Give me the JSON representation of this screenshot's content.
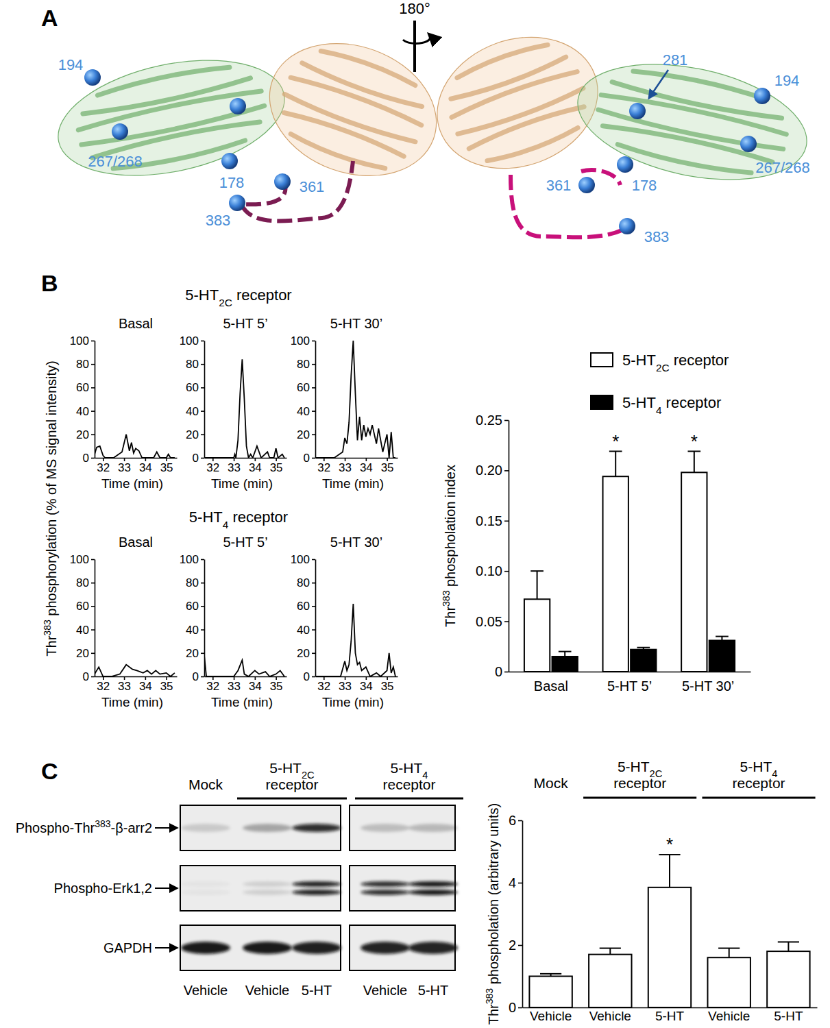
{
  "panel_labels": [
    "A",
    "B",
    "C"
  ],
  "structure": {
    "rotation": "180°",
    "left_view": [
      "194",
      "267/268",
      "178",
      "361",
      "383"
    ],
    "right_view": [
      "281",
      "194",
      "267/268",
      "361",
      "178",
      "383"
    ]
  },
  "chromatogram_panel": {
    "y_label": "Thr383 phosphorylation (% of MS signal intensity)",
    "row_titles": [
      "5-HT2C receptor",
      "5-HT4 receptor"
    ]
  },
  "chart_data": [
    {
      "type": "line",
      "title": "Basal",
      "x_label": "Time (min)",
      "color": "#000000",
      "x": [
        31.6,
        31.7,
        31.85,
        32.0,
        32.1,
        32.5,
        32.9,
        33.1,
        33.25,
        33.35,
        33.45,
        33.55,
        33.7,
        33.85,
        34.0,
        34.4,
        34.55,
        34.7,
        35.0,
        35.1,
        35.2,
        35.4
      ],
      "values": [
        3,
        9,
        10,
        2,
        0,
        0,
        5,
        20,
        6,
        13,
        4,
        8,
        6,
        0,
        0,
        0,
        5,
        0,
        0,
        3,
        0,
        0
      ],
      "xlim": [
        31.6,
        35.5
      ],
      "ylim": [
        0,
        100
      ],
      "xticks": [
        32,
        33,
        34,
        35
      ],
      "yticks": [
        0,
        20,
        40,
        60,
        80,
        100
      ]
    },
    {
      "type": "line",
      "title": "5-HT 5’",
      "x_label": "Time (min)",
      "color": "#000000",
      "x": [
        31.6,
        32.0,
        32.5,
        33.0,
        33.05,
        33.1,
        33.2,
        33.3,
        33.4,
        33.5,
        33.6,
        33.7,
        33.8,
        33.9,
        34.1,
        34.3,
        34.6,
        34.7,
        34.9,
        35.0,
        35.1,
        35.3,
        35.4
      ],
      "values": [
        0,
        0,
        0,
        0,
        3,
        0,
        15,
        55,
        84,
        50,
        10,
        0,
        3,
        0,
        10,
        0,
        5,
        0,
        0,
        8,
        0,
        3,
        0
      ],
      "xlim": [
        31.6,
        35.5
      ],
      "ylim": [
        0,
        100
      ],
      "xticks": [
        32,
        33,
        34,
        35
      ],
      "yticks": [
        0,
        20,
        40,
        60,
        80,
        100
      ]
    },
    {
      "type": "line",
      "title": "5-HT 30’",
      "x_label": "Time (min)",
      "color": "#000000",
      "x": [
        31.6,
        32.5,
        32.9,
        33.0,
        33.1,
        33.2,
        33.3,
        33.4,
        33.5,
        33.6,
        33.7,
        33.8,
        33.9,
        34.0,
        34.1,
        34.2,
        34.3,
        34.5,
        34.6,
        34.8,
        35.0,
        35.1,
        35.2,
        35.3,
        35.4
      ],
      "values": [
        0,
        0,
        5,
        17,
        12,
        30,
        70,
        100,
        55,
        15,
        35,
        15,
        28,
        18,
        25,
        20,
        28,
        12,
        25,
        5,
        20,
        0,
        22,
        0,
        0
      ],
      "xlim": [
        31.6,
        35.5
      ],
      "ylim": [
        0,
        100
      ],
      "xticks": [
        32,
        33,
        34,
        35
      ],
      "yticks": [
        0,
        20,
        40,
        60,
        80,
        100
      ]
    },
    {
      "type": "line",
      "title": "Basal",
      "x_label": "Time (min)",
      "color": "#000000",
      "x": [
        31.6,
        31.8,
        32.0,
        32.4,
        32.8,
        33.1,
        33.4,
        33.6,
        33.9,
        34.1,
        34.3,
        34.5,
        34.7,
        35.0,
        35.2,
        35.4
      ],
      "values": [
        2,
        8,
        0,
        0,
        2,
        10,
        6,
        5,
        3,
        5,
        2,
        5,
        2,
        3,
        0,
        3
      ],
      "xlim": [
        31.6,
        35.5
      ],
      "ylim": [
        0,
        100
      ],
      "xticks": [
        32,
        33,
        34,
        35
      ],
      "yticks": [
        0,
        20,
        40,
        60,
        80,
        100
      ]
    },
    {
      "type": "line",
      "title": "5-HT 5’",
      "x_label": "Time (min)",
      "color": "#000000",
      "x": [
        31.6,
        31.7,
        33.0,
        33.2,
        33.4,
        33.5,
        33.7,
        34.0,
        34.2,
        34.5,
        34.7,
        35.0,
        35.2,
        35.4
      ],
      "values": [
        18,
        0,
        0,
        5,
        14,
        2,
        0,
        5,
        2,
        4,
        0,
        2,
        5,
        0
      ],
      "xlim": [
        31.6,
        35.5
      ],
      "ylim": [
        0,
        100
      ],
      "xticks": [
        32,
        33,
        34,
        35
      ],
      "yticks": [
        0,
        20,
        40,
        60,
        80,
        100
      ]
    },
    {
      "type": "line",
      "title": "5-HT 30’",
      "x_label": "Time (min)",
      "color": "#000000",
      "x": [
        31.6,
        32.8,
        33.0,
        33.1,
        33.2,
        33.3,
        33.4,
        33.5,
        33.6,
        33.7,
        33.8,
        34.0,
        34.2,
        34.5,
        34.7,
        35.0,
        35.1,
        35.2,
        35.3,
        35.4
      ],
      "values": [
        0,
        0,
        13,
        5,
        10,
        30,
        62,
        20,
        10,
        12,
        5,
        8,
        0,
        3,
        0,
        5,
        20,
        3,
        8,
        0
      ],
      "xlim": [
        31.6,
        35.5
      ],
      "ylim": [
        0,
        100
      ],
      "xticks": [
        32,
        33,
        34,
        35
      ],
      "yticks": [
        0,
        20,
        40,
        60,
        80,
        100
      ]
    },
    {
      "type": "bar",
      "y_label": "Thr383 phospholation index",
      "categories": [
        "Basal",
        "5-HT 5’",
        "5-HT 30’"
      ],
      "series": [
        {
          "name": "5-HT2C receptor",
          "color": "#ffffff",
          "values": [
            0.072,
            0.194,
            0.198
          ],
          "errors": [
            0.028,
            0.025,
            0.021
          ]
        },
        {
          "name": "5-HT4 receptor",
          "color": "#000000",
          "values": [
            0.015,
            0.022,
            0.031
          ],
          "errors": [
            0.005,
            0.002,
            0.004
          ]
        }
      ],
      "ylim": [
        0,
        0.25
      ],
      "yticks": [
        0,
        0.05,
        {
          "value": 0.1,
          "label": "0.10"
        },
        0.15,
        {
          "value": 0.2,
          "label": "0.20"
        },
        0.25
      ],
      "legend": "top",
      "annotations": [
        {
          "text": "*",
          "series": 0,
          "category": 1
        },
        {
          "text": "*",
          "series": 0,
          "category": 2
        }
      ]
    },
    {
      "type": "bar",
      "y_label": "Thr383 phospholation (arbitrary units)",
      "categories": [
        "Vehicle",
        "Vehicle",
        "5-HT",
        "Vehicle",
        "5-HT"
      ],
      "color": "#ffffff",
      "values": [
        1.0,
        1.7,
        3.85,
        1.6,
        1.8
      ],
      "errors": [
        0.08,
        0.2,
        1.05,
        0.3,
        0.3
      ],
      "ylim": [
        0,
        6
      ],
      "yticks": [
        0,
        2,
        4,
        6
      ],
      "groups": [
        {
          "label": "Mock",
          "from": 0,
          "to": 0
        },
        {
          "label": "5-HT2C receptor",
          "from": 1,
          "to": 2
        },
        {
          "label": "5-HT4 receptor",
          "from": 3,
          "to": 4
        }
      ],
      "annotations": [
        {
          "text": "*",
          "category": 2
        }
      ]
    }
  ],
  "blot": {
    "groups": [
      {
        "label": "Mock",
        "from": 0,
        "to": 0
      },
      {
        "label": "5-HT2C receptor",
        "from": 1,
        "to": 2
      },
      {
        "label": "5-HT4 receptor",
        "from": 3,
        "to": 4
      }
    ],
    "lanes": [
      "Vehicle",
      "Vehicle",
      "5-HT",
      "Vehicle",
      "5-HT"
    ],
    "rows": [
      {
        "label": "Phospho-Thr383-β-arr2",
        "intensity": [
          0.15,
          0.3,
          0.85,
          0.2,
          0.22
        ],
        "doublet": false
      },
      {
        "label": "Phospho-Erk1,2",
        "intensity": [
          0.04,
          0.12,
          0.9,
          0.85,
          0.95
        ],
        "doublet": true
      },
      {
        "label": "GAPDH",
        "intensity": [
          0.95,
          0.95,
          0.92,
          0.9,
          0.9
        ],
        "doublet": false
      }
    ]
  }
}
